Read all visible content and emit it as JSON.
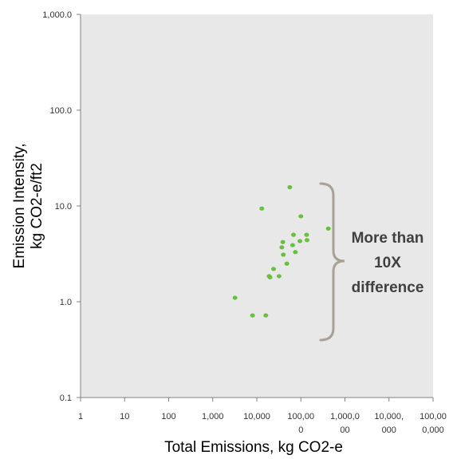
{
  "chart_data": {
    "type": "scatter",
    "xlabel": "Total Emissions, kg CO2-e",
    "ylabel_lines": [
      "Emission Intensity,",
      "kg CO2-e/ft2"
    ],
    "x_scale": "log",
    "y_scale": "log",
    "xlim": [
      1,
      100000000
    ],
    "ylim": [
      0.1,
      1000
    ],
    "x_tick_values": [
      1,
      10,
      100,
      1000,
      10000,
      100000,
      1000000,
      10000000,
      100000000
    ],
    "x_tick_labels": [
      [
        "1"
      ],
      [
        "10"
      ],
      [
        "100"
      ],
      [
        "1,000"
      ],
      [
        "10,000"
      ],
      [
        "100,00",
        "0"
      ],
      [
        "1,000,0",
        "00"
      ],
      [
        "10,000,",
        "000"
      ],
      [
        "100,00",
        "0,000"
      ]
    ],
    "y_tick_values": [
      0.1,
      1,
      10,
      100,
      1000
    ],
    "y_tick_labels": [
      "0.1",
      "1.0",
      "10.0",
      "100.0",
      "1,000.0"
    ],
    "grid": false,
    "plot_background": "#e8e8e8",
    "marker_color": "#6abf3f",
    "points": [
      {
        "x": 3200,
        "y": 1.1
      },
      {
        "x": 8000,
        "y": 0.72
      },
      {
        "x": 13000,
        "y": 9.4
      },
      {
        "x": 16000,
        "y": 0.72
      },
      {
        "x": 19000,
        "y": 1.85
      },
      {
        "x": 20000,
        "y": 1.8
      },
      {
        "x": 24000,
        "y": 2.2
      },
      {
        "x": 32000,
        "y": 1.85
      },
      {
        "x": 37000,
        "y": 3.7
      },
      {
        "x": 39000,
        "y": 4.2
      },
      {
        "x": 40000,
        "y": 3.1
      },
      {
        "x": 48000,
        "y": 2.5
      },
      {
        "x": 56000,
        "y": 15.7
      },
      {
        "x": 65000,
        "y": 3.9
      },
      {
        "x": 68000,
        "y": 5.0
      },
      {
        "x": 75000,
        "y": 3.3
      },
      {
        "x": 95000,
        "y": 4.3
      },
      {
        "x": 100000,
        "y": 7.8
      },
      {
        "x": 135000,
        "y": 5.0
      },
      {
        "x": 138000,
        "y": 4.4
      },
      {
        "x": 420000,
        "y": 5.8
      }
    ],
    "annotation": {
      "lines": [
        "More than",
        "10X",
        "difference"
      ],
      "bracket_color": "#a8a296",
      "text_color": "#404040"
    }
  }
}
